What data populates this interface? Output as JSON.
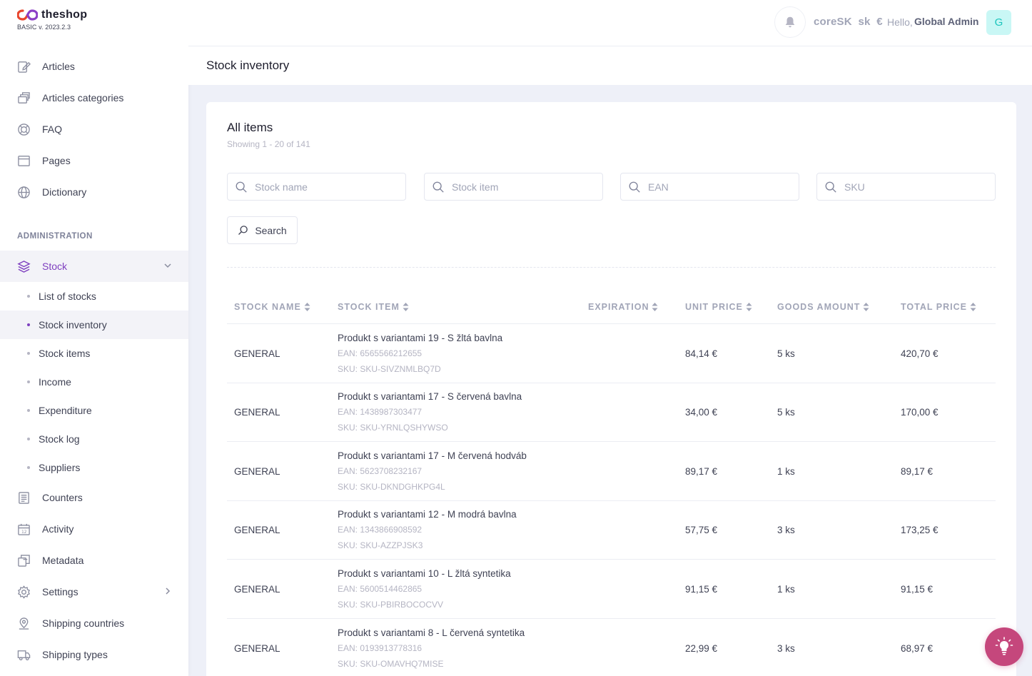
{
  "brand": {
    "name": "theshop",
    "version": "BASIC v. 2023.2.3"
  },
  "sidebar": {
    "items_top": [
      {
        "label": "Articles",
        "icon": "articles-icon"
      },
      {
        "label": "Articles categories",
        "icon": "categories-icon"
      },
      {
        "label": "FAQ",
        "icon": "faq-icon"
      },
      {
        "label": "Pages",
        "icon": "pages-icon"
      },
      {
        "label": "Dictionary",
        "icon": "globe-icon"
      }
    ],
    "section_title": "ADMINISTRATION",
    "stock": {
      "label": "Stock",
      "icon": "stock-icon",
      "expanded": true
    },
    "stock_sub": [
      {
        "label": "List of stocks",
        "active": false
      },
      {
        "label": "Stock inventory",
        "active": true
      },
      {
        "label": "Stock items",
        "active": false
      },
      {
        "label": "Income",
        "active": false
      },
      {
        "label": "Expenditure",
        "active": false
      },
      {
        "label": "Stock log",
        "active": false
      },
      {
        "label": "Suppliers",
        "active": false
      }
    ],
    "items_bottom": [
      {
        "label": "Counters",
        "icon": "counters-icon"
      },
      {
        "label": "Activity",
        "icon": "calendar-icon"
      },
      {
        "label": "Metadata",
        "icon": "metadata-icon"
      },
      {
        "label": "Settings",
        "icon": "gear-icon",
        "has_children": true
      },
      {
        "label": "Shipping countries",
        "icon": "map-pin-icon"
      },
      {
        "label": "Shipping types",
        "icon": "truck-icon"
      }
    ]
  },
  "header": {
    "locale": "coreSK  sk  €",
    "hello": "Hello,",
    "user_name": "Global Admin",
    "avatar_initial": "G"
  },
  "page": {
    "title": "Stock inventory"
  },
  "card": {
    "title": "All items",
    "subtitle": "Showing 1 - 20 of 141",
    "filters": [
      {
        "placeholder": "Stock name",
        "value": ""
      },
      {
        "placeholder": "Stock item",
        "value": ""
      },
      {
        "placeholder": "EAN",
        "value": ""
      },
      {
        "placeholder": "SKU",
        "value": ""
      }
    ],
    "search_label": "Search"
  },
  "table": {
    "columns": [
      "STOCK NAME",
      "STOCK ITEM",
      "EXPIRATION",
      "UNIT PRICE",
      "GOODS AMOUNT",
      "TOTAL PRICE"
    ],
    "rows": [
      {
        "stock_name": "GENERAL",
        "item_name": "Produkt s variantami 19 - S žltá bavlna",
        "ean": "EAN: 6565566212655",
        "sku": "SKU: SKU-SIVZNMLBQ7D",
        "expiration": "",
        "unit_price": "84,14 €",
        "amount": "5 ks",
        "total": "420,70 €"
      },
      {
        "stock_name": "GENERAL",
        "item_name": "Produkt s variantami 17 - S červená bavlna",
        "ean": "EAN: 1438987303477",
        "sku": "SKU: SKU-YRNLQSHYWSO",
        "expiration": "",
        "unit_price": "34,00 €",
        "amount": "5 ks",
        "total": "170,00 €"
      },
      {
        "stock_name": "GENERAL",
        "item_name": "Produkt s variantami 17 - M červená hodváb",
        "ean": "EAN: 5623708232167",
        "sku": "SKU: SKU-DKNDGHKPG4L",
        "expiration": "",
        "unit_price": "89,17 €",
        "amount": "1 ks",
        "total": "89,17 €"
      },
      {
        "stock_name": "GENERAL",
        "item_name": "Produkt s variantami 12 - M modrá bavlna",
        "ean": "EAN: 1343866908592",
        "sku": "SKU: SKU-AZZPJSK3",
        "expiration": "",
        "unit_price": "57,75 €",
        "amount": "3 ks",
        "total": "173,25 €"
      },
      {
        "stock_name": "GENERAL",
        "item_name": "Produkt s variantami 10 - L žltá syntetika",
        "ean": "EAN: 5600514462865",
        "sku": "SKU: SKU-PBIRBOCOCVV",
        "expiration": "",
        "unit_price": "91,15 €",
        "amount": "1 ks",
        "total": "91,15 €"
      },
      {
        "stock_name": "GENERAL",
        "item_name": "Produkt s variantami 8 - L červená syntetika",
        "ean": "EAN: 0193913778316",
        "sku": "SKU: SKU-OMAVHQ7MISE",
        "expiration": "",
        "unit_price": "22,99 €",
        "amount": "3 ks",
        "total": "68,97 €"
      }
    ]
  },
  "colors": {
    "accent": "#7e3fbf",
    "tip_button": "#c5477c",
    "avatar_bg": "#c9f7f5",
    "avatar_fg": "#1bc5bd"
  },
  "fab": {
    "icon": "lightbulb-icon"
  }
}
